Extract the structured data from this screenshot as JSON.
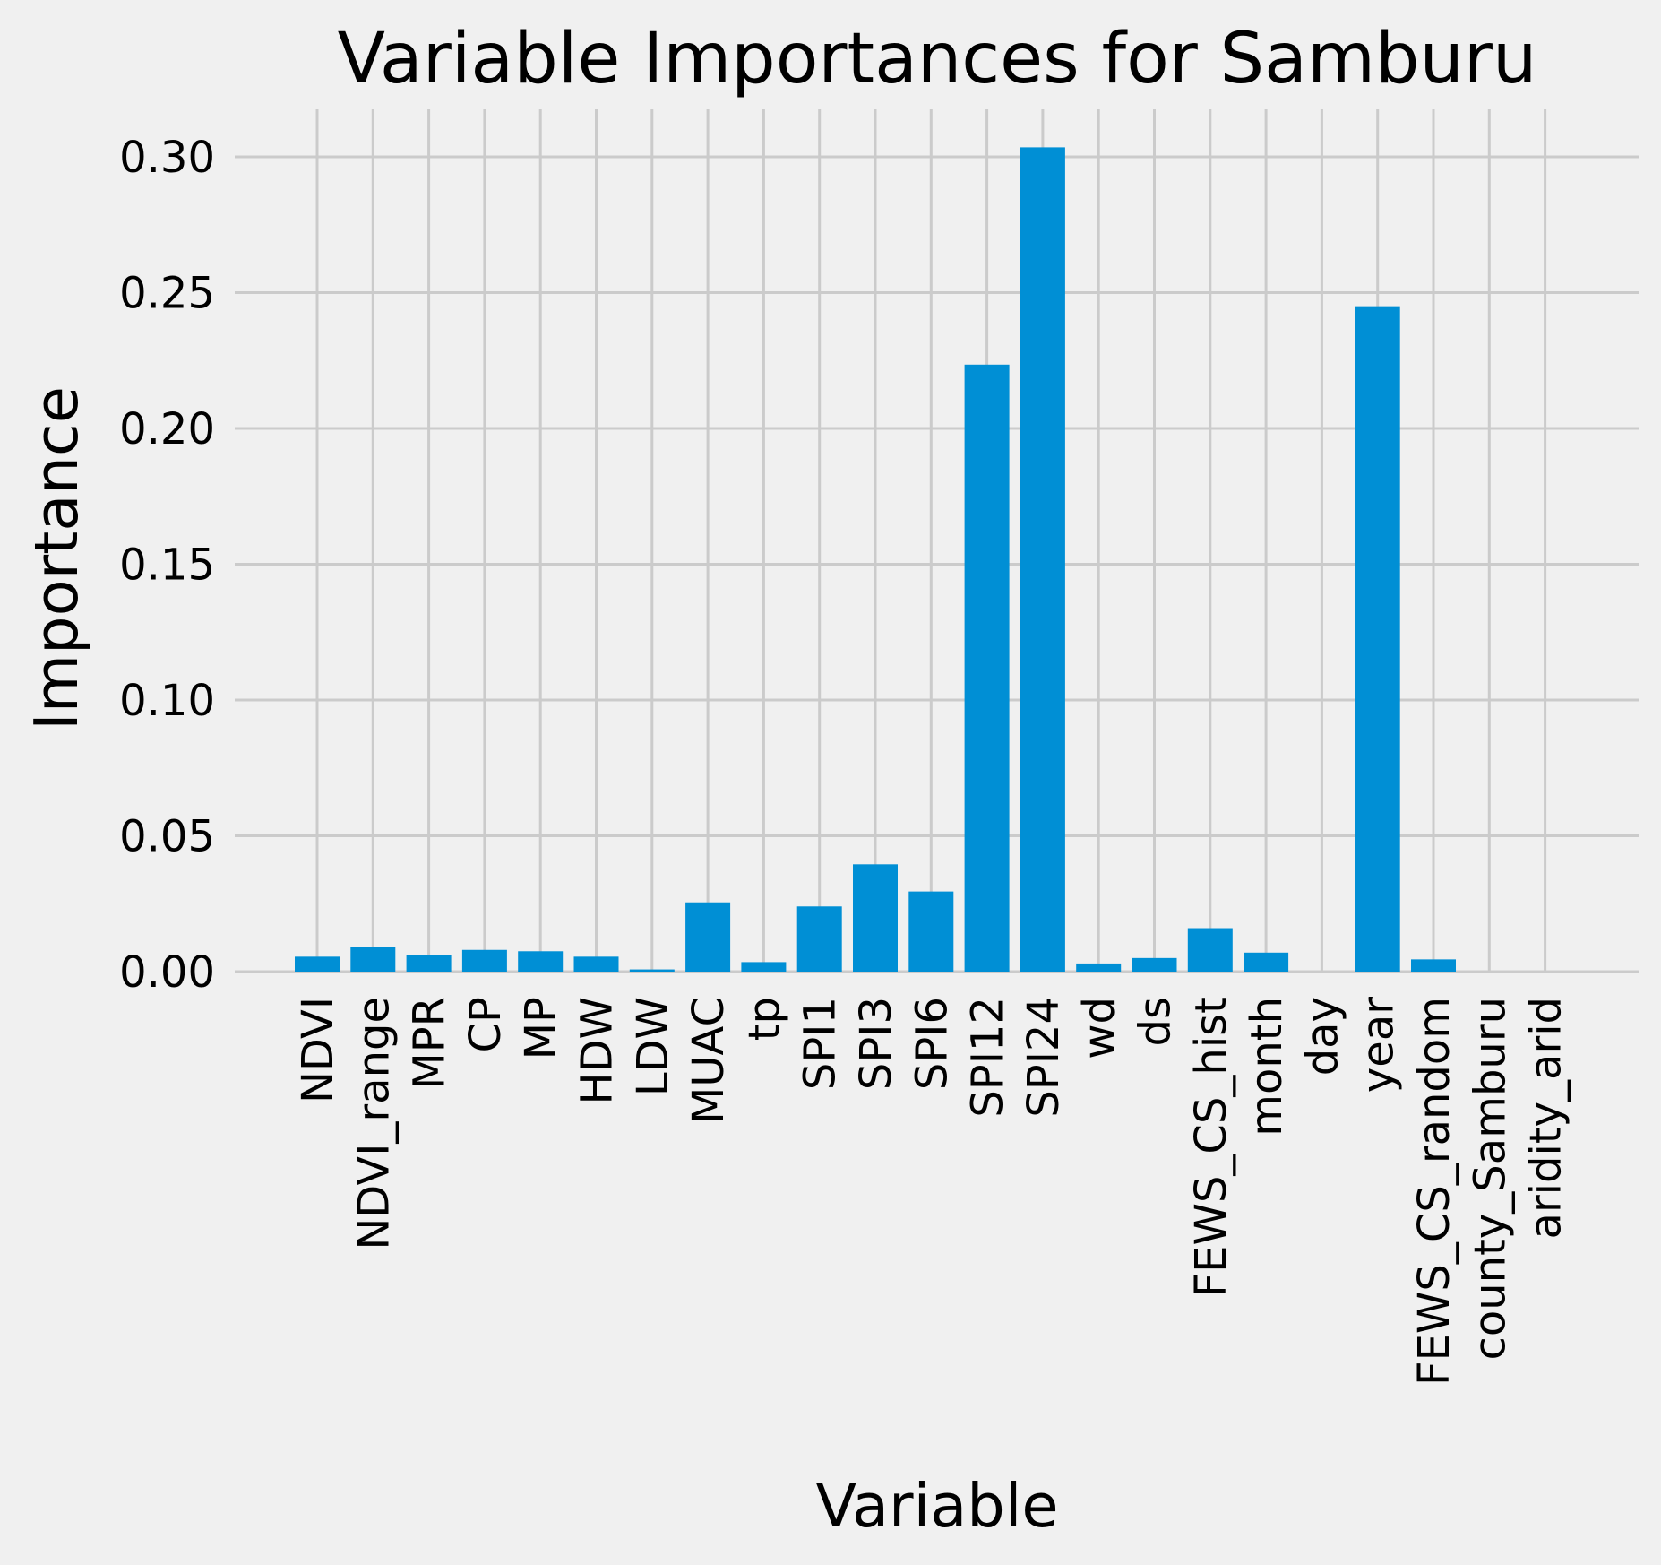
{
  "chart_data": {
    "type": "bar",
    "title": "Variable Importances for Samburu",
    "xlabel": "Variable",
    "ylabel": "Importance",
    "ylim": [
      0,
      0.31
    ],
    "yticks": [
      "0.00",
      "0.05",
      "0.10",
      "0.15",
      "0.20",
      "0.25",
      "0.30"
    ],
    "grid": true,
    "colors": {
      "bar": "#008fd5",
      "background": "#f0f0f0",
      "grid": "#cbcbcb"
    },
    "categories": [
      "NDVI",
      "NDVI_range",
      "MPR",
      "CP",
      "MP",
      "HDW",
      "LDW",
      "MUAC",
      "tp",
      "SPI1",
      "SPI3",
      "SPI6",
      "SPI12",
      "SPI24",
      "wd",
      "ds",
      "FEWS_CS_hist",
      "month",
      "day",
      "year",
      "FEWS_CS_random",
      "county_Samburu",
      "aridity_arid"
    ],
    "values": [
      0.0055,
      0.009,
      0.006,
      0.008,
      0.0075,
      0.0055,
      0.0008,
      0.0255,
      0.0035,
      0.024,
      0.0395,
      0.0295,
      0.2235,
      0.3035,
      0.003,
      0.005,
      0.016,
      0.007,
      0.0,
      0.245,
      0.0045,
      0.0,
      0.0
    ]
  }
}
